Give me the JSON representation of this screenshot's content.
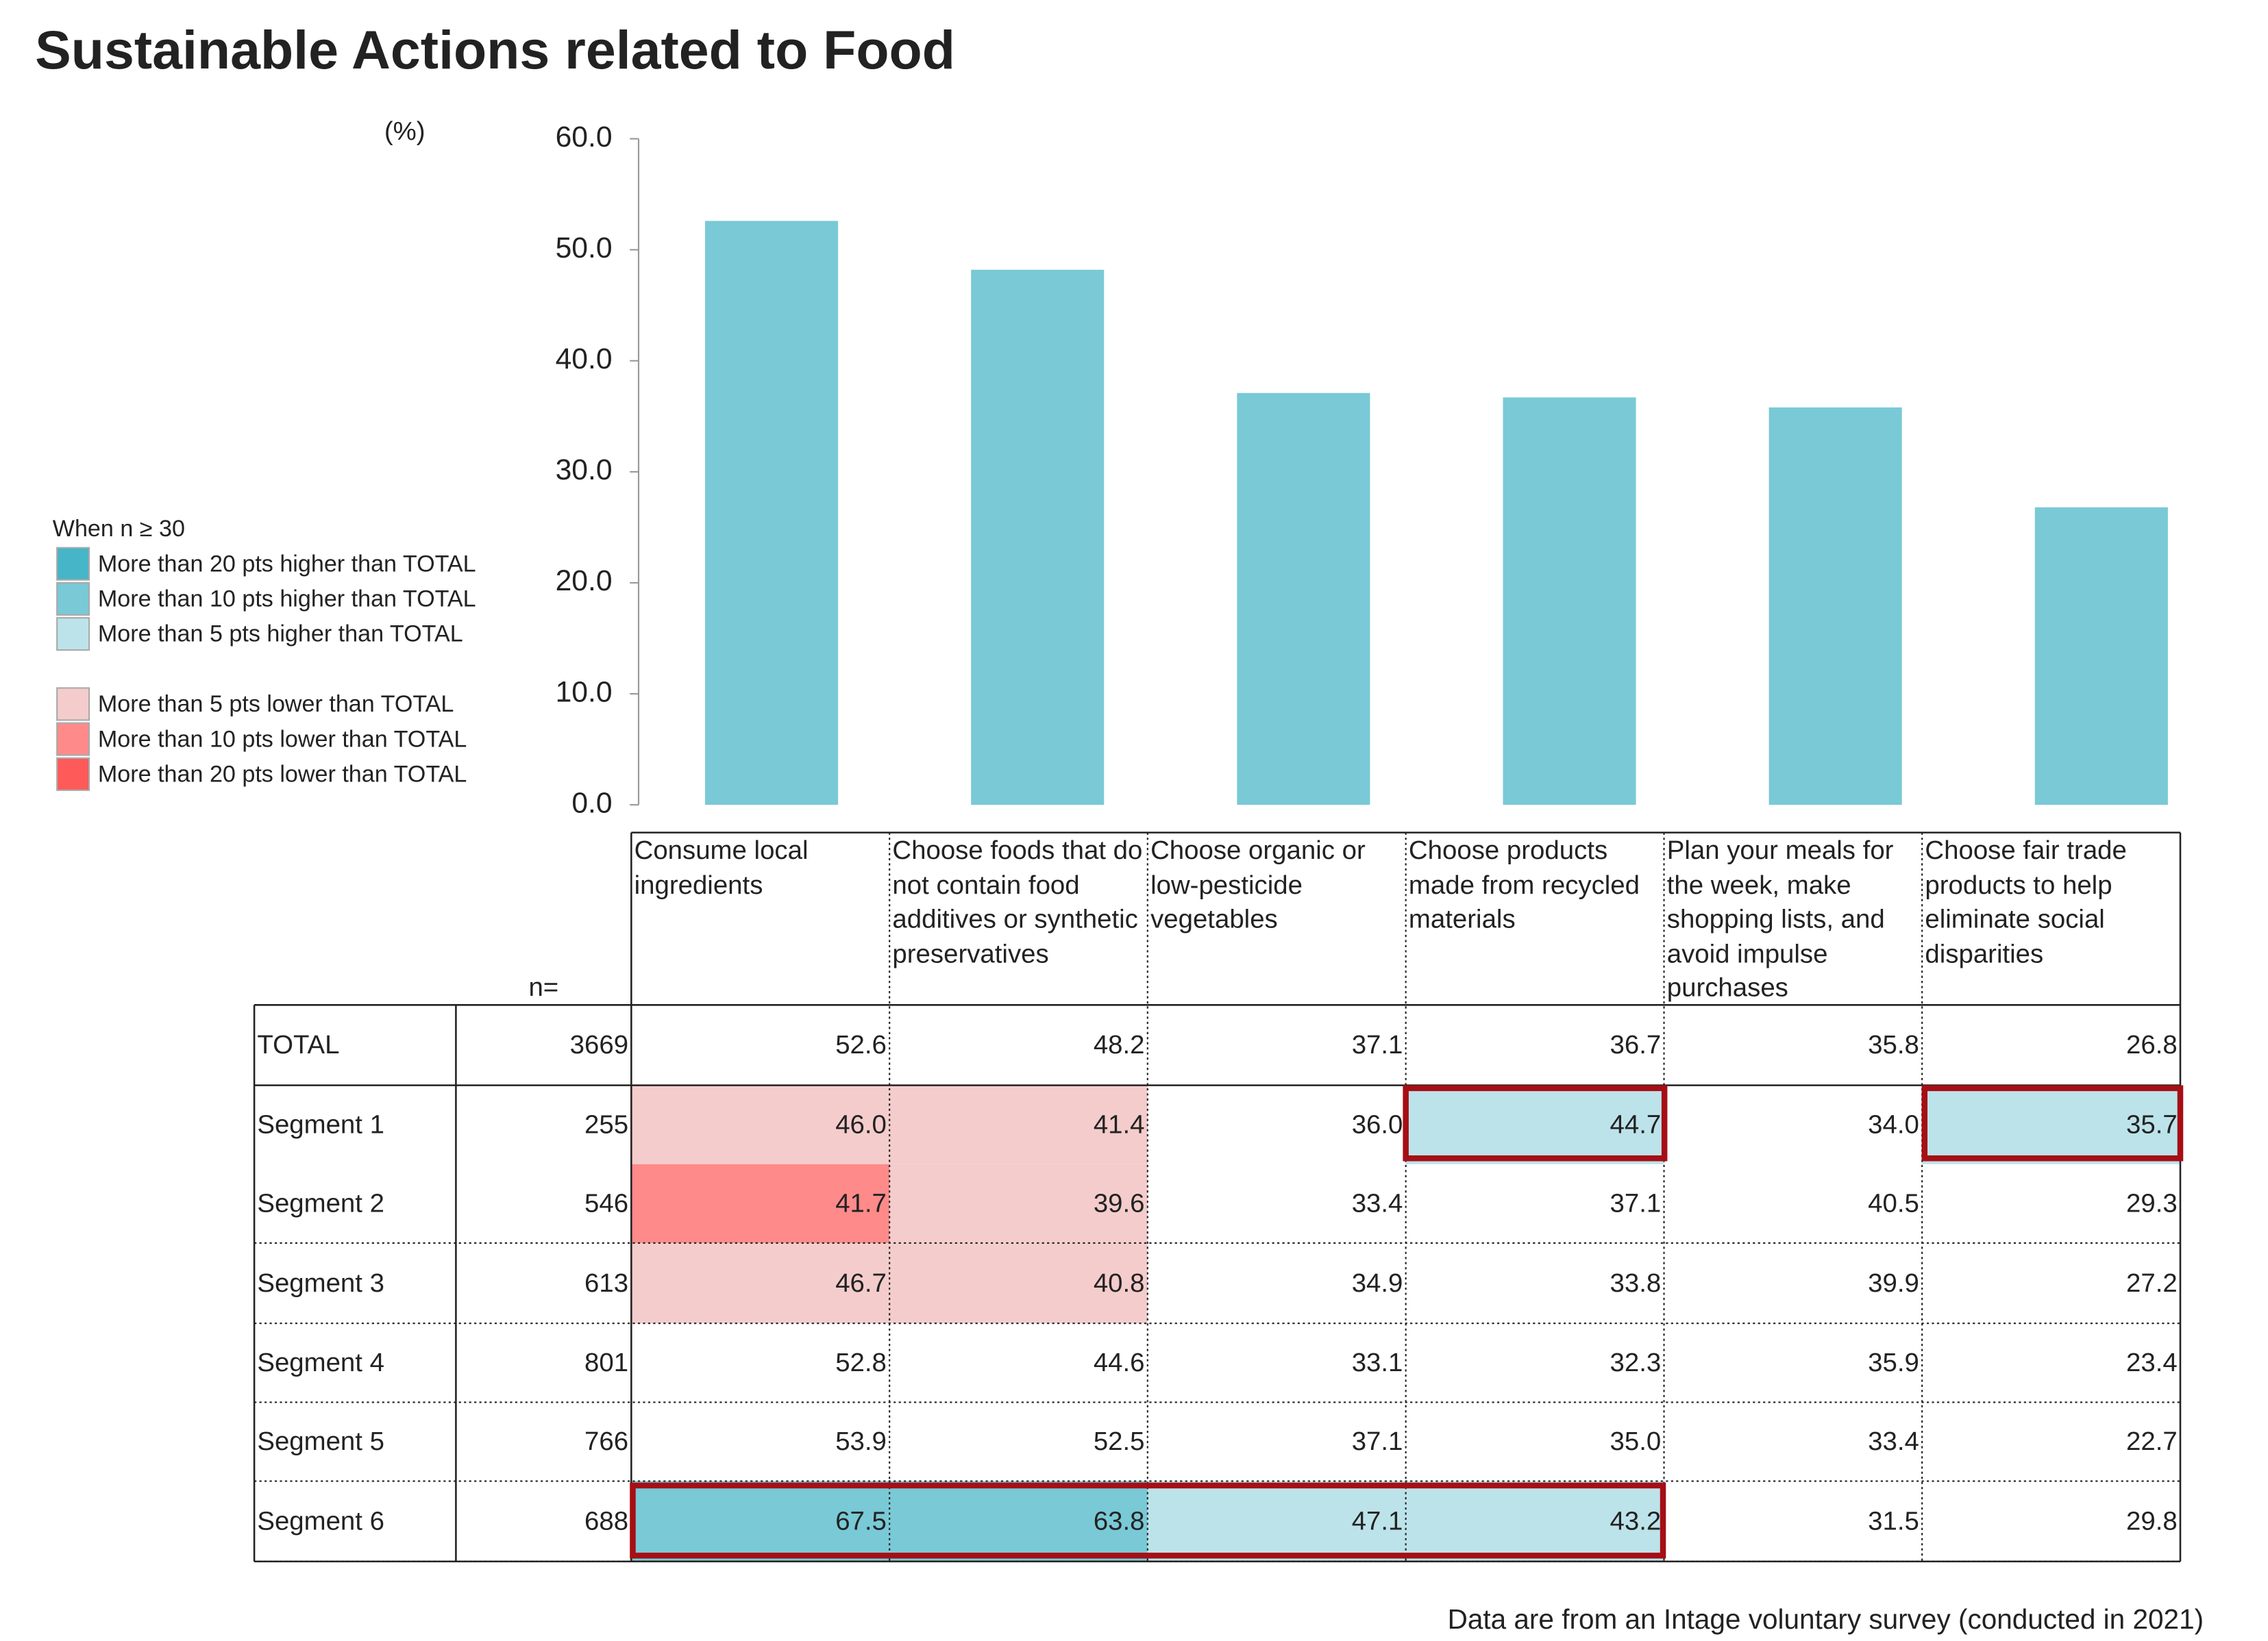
{
  "chart_data": {
    "type": "bar",
    "title": "Sustainable Actions related to Food",
    "unit_label": "(%)",
    "categories": [
      "Consume local ingredients",
      "Choose foods that do not contain food additives or synthetic preservatives",
      "Choose organic or low-pesticide vegetables",
      "Choose products made from recycled materials",
      "Plan your meals for the week, make shopping lists, and avoid impulse purchases",
      "Choose fair trade products to help eliminate social disparities"
    ],
    "values": [
      52.6,
      48.2,
      37.1,
      36.7,
      35.8,
      26.8
    ],
    "color": "#79c9d6",
    "ylim": [
      0,
      60
    ],
    "yticks": [
      {
        "value": 0,
        "label": "0.0"
      },
      {
        "value": 10,
        "label": "10.0"
      },
      {
        "value": 20,
        "label": "20.0"
      },
      {
        "value": 30,
        "label": "30.0"
      },
      {
        "value": 40,
        "label": "40.0"
      },
      {
        "value": 50,
        "label": "50.0"
      },
      {
        "value": 60,
        "label": "60.0"
      }
    ]
  },
  "legend": {
    "title": "When n ≥ 30",
    "items": [
      {
        "label": "More than 20 pts higher than TOTAL",
        "color": "#47b5c8"
      },
      {
        "label": "More than 10 pts higher than TOTAL",
        "color": "#79c9d6"
      },
      {
        "label": "More than 5 pts higher than TOTAL",
        "color": "#bde3ea"
      },
      {
        "label": "More than 5 pts lower than TOTAL",
        "color": "#f4cccc"
      },
      {
        "label": "More than 10 pts lower than TOTAL",
        "color": "#ff8a8a"
      },
      {
        "label": "More than 20 pts lower than TOTAL",
        "color": "#ff5a5a"
      }
    ]
  },
  "table": {
    "n_label": "n=",
    "total_label": "TOTAL",
    "total_n": 3669,
    "rows": [
      {
        "label": "Segment 1",
        "n": 255,
        "values": [
          "46.0",
          "41.4",
          "36.0",
          "44.7",
          "34.0",
          "35.7"
        ],
        "fills": [
          "#f4cccc",
          "#f4cccc",
          null,
          "#bde3ea",
          null,
          "#bde3ea"
        ]
      },
      {
        "label": "Segment 2",
        "n": 546,
        "values": [
          "41.7",
          "39.6",
          "33.4",
          "37.1",
          "40.5",
          "29.3"
        ],
        "fills": [
          "#ff8a8a",
          "#f4cccc",
          null,
          null,
          null,
          null
        ]
      },
      {
        "label": "Segment 3",
        "n": 613,
        "values": [
          "46.7",
          "40.8",
          "34.9",
          "33.8",
          "39.9",
          "27.2"
        ],
        "fills": [
          "#f4cccc",
          "#f4cccc",
          null,
          null,
          null,
          null
        ]
      },
      {
        "label": "Segment 4",
        "n": 801,
        "values": [
          "52.8",
          "44.6",
          "33.1",
          "32.3",
          "35.9",
          "23.4"
        ],
        "fills": [
          null,
          null,
          null,
          null,
          null,
          null
        ]
      },
      {
        "label": "Segment 5",
        "n": 766,
        "values": [
          "53.9",
          "52.5",
          "37.1",
          "35.0",
          "33.4",
          "22.7"
        ],
        "fills": [
          null,
          null,
          null,
          null,
          null,
          null
        ]
      },
      {
        "label": "Segment 6",
        "n": 688,
        "values": [
          "67.5",
          "63.8",
          "47.1",
          "43.2",
          "31.5",
          "29.8"
        ],
        "fills": [
          "#79c9d6",
          "#79c9d6",
          "#bde3ea",
          "#bde3ea",
          null,
          null
        ]
      }
    ]
  },
  "footnote": "Data are from an Intage voluntary survey (conducted in 2021)"
}
